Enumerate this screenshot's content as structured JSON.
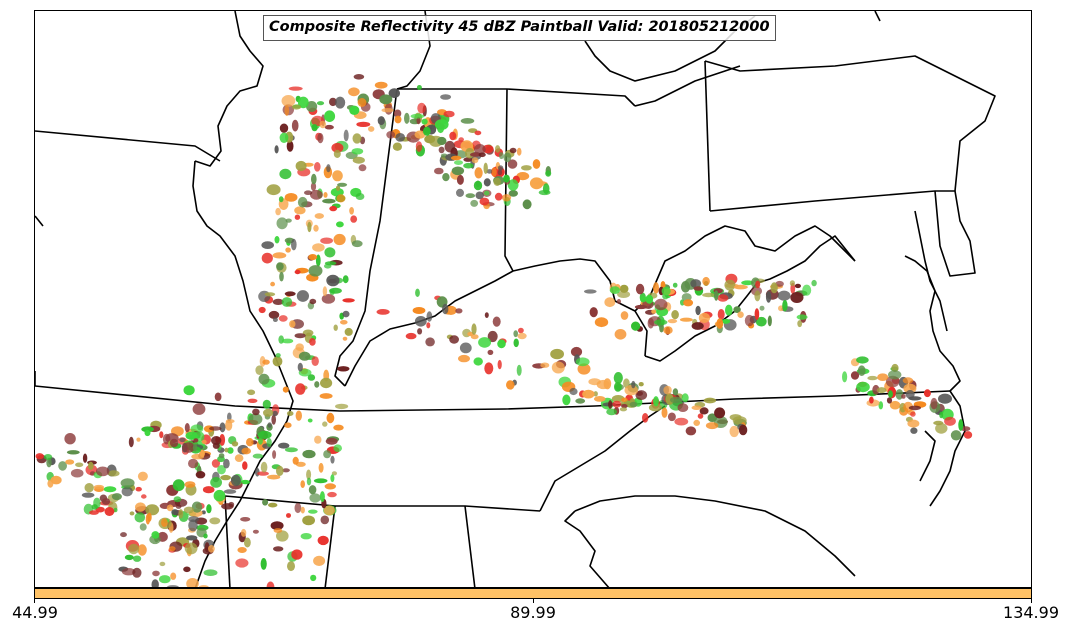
{
  "title": "Composite Reflectivity 45 dBZ Paintball Valid: 201805212000",
  "colorbar": {
    "color": "#ffc266",
    "ticks": [
      "44.99",
      "89.99",
      "134.99"
    ],
    "range": [
      44.99,
      134.99
    ]
  },
  "colors": {
    "paint": [
      "#e8302a",
      "#f58a1f",
      "#f7a54a",
      "#3dd63d",
      "#2fbf2f",
      "#5c8f4a",
      "#8c3a3a",
      "#a0a040",
      "#555555",
      "#6b1f1f"
    ]
  }
}
